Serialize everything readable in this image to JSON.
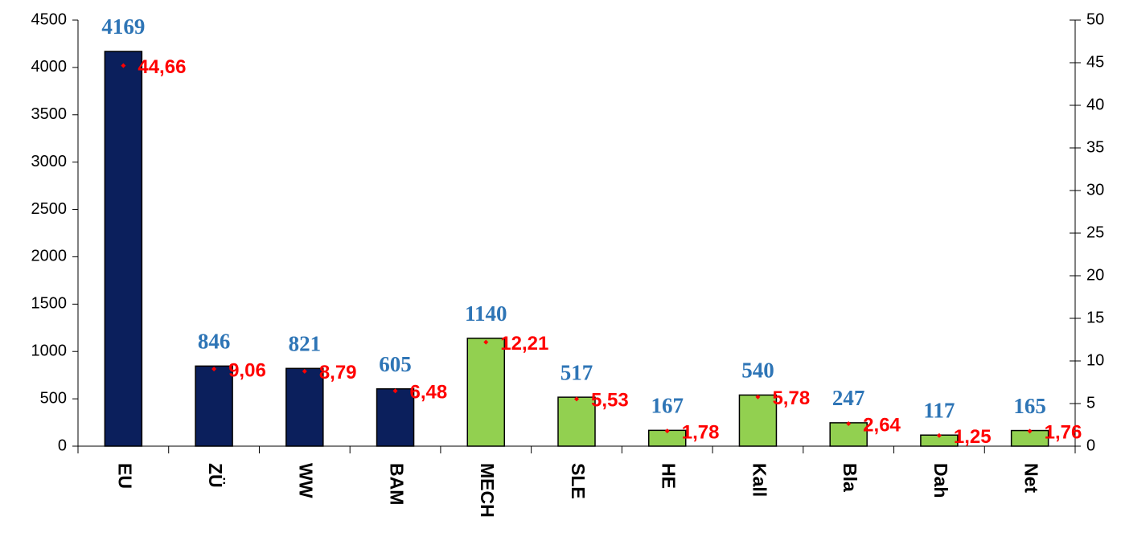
{
  "chart_data": {
    "type": "bar",
    "categories": [
      "EU",
      "ZÜ",
      "WW",
      "BAM",
      "MECH",
      "SLE",
      "HE",
      "Kall",
      "Bla",
      "Dah",
      "Net"
    ],
    "series": [
      {
        "type": "bar",
        "values": [
          4169,
          846,
          821,
          605,
          1140,
          517,
          167,
          540,
          247,
          117,
          165
        ],
        "colors": [
          "#0b1f5c",
          "#0b1f5c",
          "#0b1f5c",
          "#0b1f5c",
          "#92d050",
          "#92d050",
          "#92d050",
          "#92d050",
          "#92d050",
          "#92d050",
          "#92d050"
        ],
        "label_color": "#2e75b6"
      },
      {
        "type": "scatter",
        "axis": "y2",
        "color": "#ff0000",
        "values": [
          44.66,
          9.06,
          8.79,
          6.48,
          12.21,
          5.53,
          1.78,
          5.78,
          2.64,
          1.25,
          1.76
        ],
        "value_labels": [
          "44,66",
          "9,06",
          "8,79",
          "6,48",
          "12,21",
          "5,53",
          "1,78",
          "5,78",
          "2,64",
          "1,25",
          "1,76"
        ]
      }
    ],
    "ylim": [
      0,
      4500
    ],
    "yticks": [
      0,
      500,
      1000,
      1500,
      2000,
      2500,
      3000,
      3500,
      4000,
      4500
    ],
    "y2lim": [
      0,
      50
    ],
    "y2ticks": [
      0,
      5,
      10,
      15,
      20,
      25,
      30,
      35,
      40,
      45,
      50
    ],
    "grid": false
  }
}
